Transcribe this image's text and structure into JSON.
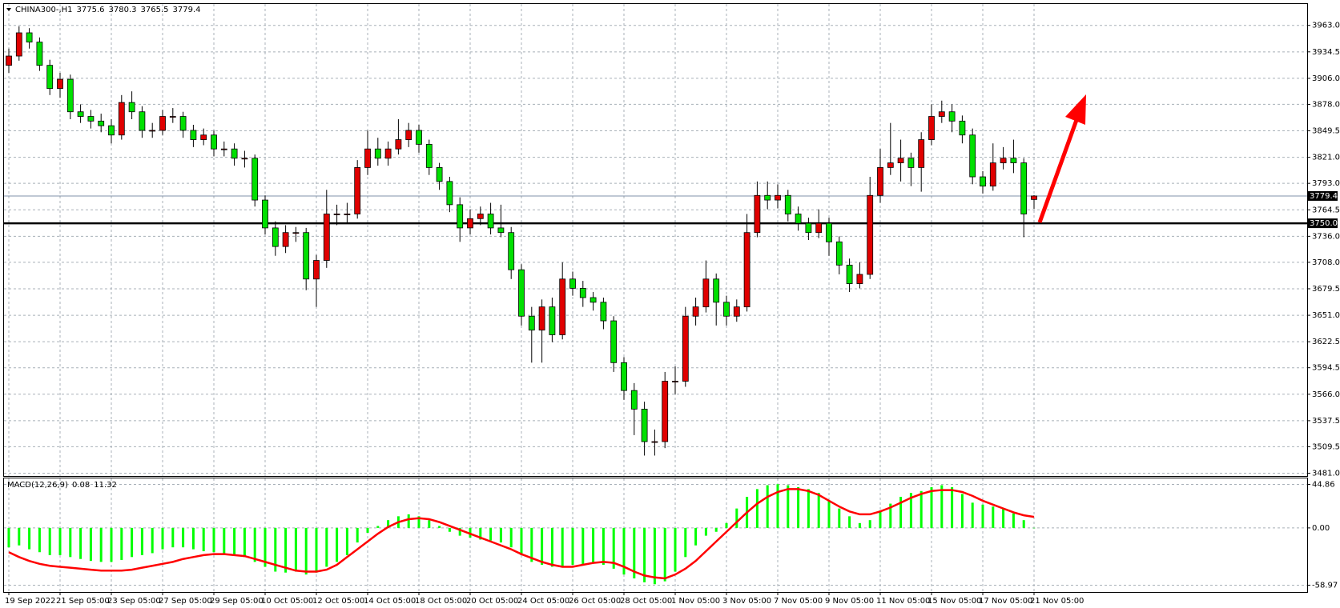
{
  "chart_data": {
    "type": "candlestick",
    "title": "CHINA300-,H1",
    "categories": [
      "19 Sep 2022",
      null,
      null,
      null,
      null,
      "21 Sep 05:00",
      null,
      null,
      null,
      null,
      "23 Sep 05:00",
      null,
      null,
      null,
      null,
      "27 Sep 05:00",
      null,
      null,
      null,
      null,
      "29 Sep 05:00",
      null,
      null,
      null,
      null,
      "10 Oct 05:00",
      null,
      null,
      null,
      null,
      "12 Oct 05:00",
      null,
      null,
      null,
      null,
      "14 Oct 05:00",
      null,
      null,
      null,
      null,
      "18 Oct 05:00",
      null,
      null,
      null,
      null,
      "20 Oct 05:00",
      null,
      null,
      null,
      null,
      "24 Oct 05:00",
      null,
      null,
      null,
      null,
      "26 Oct 05:00",
      null,
      null,
      null,
      null,
      "28 Oct 05:00",
      null,
      null,
      null,
      null,
      "1 Nov 05:00",
      null,
      null,
      null,
      null,
      "3 Nov 05:00",
      null,
      null,
      null,
      null,
      "7 Nov 05:00",
      null,
      null,
      null,
      null,
      "9 Nov 05:00",
      null,
      null,
      null,
      null,
      "11 Nov 05:00",
      null,
      null,
      null,
      null,
      "15 Nov 05:00",
      null,
      null,
      null,
      null,
      "17 Nov 05:00",
      null,
      null,
      null,
      null,
      "21 Nov 05:00"
    ],
    "candles": [
      [
        3920,
        3938,
        3912,
        3930
      ],
      [
        3930,
        3962,
        3925,
        3955
      ],
      [
        3955,
        3960,
        3938,
        3945
      ],
      [
        3945,
        3950,
        3914,
        3920
      ],
      [
        3920,
        3926,
        3888,
        3895
      ],
      [
        3895,
        3912,
        3885,
        3905
      ],
      [
        3905,
        3910,
        3862,
        3870
      ],
      [
        3870,
        3878,
        3858,
        3865
      ],
      [
        3865,
        3872,
        3852,
        3860
      ],
      [
        3860,
        3868,
        3848,
        3855
      ],
      [
        3855,
        3862,
        3836,
        3845
      ],
      [
        3845,
        3888,
        3840,
        3880
      ],
      [
        3880,
        3892,
        3862,
        3870
      ],
      [
        3870,
        3876,
        3842,
        3850
      ],
      [
        3850,
        3858,
        3842,
        3850
      ],
      [
        3850,
        3872,
        3845,
        3865
      ],
      [
        3865,
        3874,
        3858,
        3865
      ],
      [
        3865,
        3870,
        3842,
        3850
      ],
      [
        3850,
        3856,
        3832,
        3840
      ],
      [
        3840,
        3852,
        3834,
        3845
      ],
      [
        3845,
        3850,
        3822,
        3830
      ],
      [
        3830,
        3838,
        3822,
        3830
      ],
      [
        3830,
        3836,
        3812,
        3820
      ],
      [
        3820,
        3828,
        3810,
        3820
      ],
      [
        3820,
        3824,
        3768,
        3775
      ],
      [
        3775,
        3780,
        3738,
        3745
      ],
      [
        3745,
        3752,
        3715,
        3725
      ],
      [
        3725,
        3748,
        3718,
        3740
      ],
      [
        3740,
        3746,
        3730,
        3740
      ],
      [
        3740,
        3745,
        3678,
        3690
      ],
      [
        3690,
        3716,
        3660,
        3710
      ],
      [
        3710,
        3786,
        3702,
        3760
      ],
      [
        3760,
        3770,
        3748,
        3760
      ],
      [
        3760,
        3772,
        3750,
        3760
      ],
      [
        3760,
        3818,
        3755,
        3810
      ],
      [
        3810,
        3850,
        3802,
        3830
      ],
      [
        3830,
        3842,
        3812,
        3820
      ],
      [
        3820,
        3838,
        3812,
        3830
      ],
      [
        3830,
        3862,
        3824,
        3840
      ],
      [
        3840,
        3858,
        3832,
        3850
      ],
      [
        3850,
        3856,
        3826,
        3835
      ],
      [
        3835,
        3840,
        3802,
        3810
      ],
      [
        3810,
        3815,
        3786,
        3795
      ],
      [
        3795,
        3800,
        3762,
        3770
      ],
      [
        3770,
        3778,
        3730,
        3745
      ],
      [
        3745,
        3765,
        3738,
        3755
      ],
      [
        3755,
        3768,
        3748,
        3760
      ],
      [
        3760,
        3772,
        3738,
        3745
      ],
      [
        3745,
        3770,
        3735,
        3740
      ],
      [
        3740,
        3746,
        3690,
        3700
      ],
      [
        3700,
        3706,
        3640,
        3650
      ],
      [
        3650,
        3660,
        3600,
        3635
      ],
      [
        3635,
        3668,
        3600,
        3660
      ],
      [
        3660,
        3670,
        3622,
        3630
      ],
      [
        3630,
        3708,
        3625,
        3690
      ],
      [
        3690,
        3698,
        3672,
        3680
      ],
      [
        3680,
        3688,
        3660,
        3670
      ],
      [
        3670,
        3676,
        3656,
        3665
      ],
      [
        3665,
        3670,
        3636,
        3645
      ],
      [
        3645,
        3650,
        3590,
        3600
      ],
      [
        3600,
        3606,
        3560,
        3570
      ],
      [
        3570,
        3578,
        3522,
        3550
      ],
      [
        3550,
        3558,
        3500,
        3515
      ],
      [
        3515,
        3528,
        3500,
        3515
      ],
      [
        3515,
        3590,
        3508,
        3580
      ],
      [
        3580,
        3596,
        3566,
        3580
      ],
      [
        3580,
        3660,
        3574,
        3650
      ],
      [
        3650,
        3670,
        3640,
        3660
      ],
      [
        3660,
        3710,
        3654,
        3690
      ],
      [
        3690,
        3696,
        3640,
        3665
      ],
      [
        3665,
        3672,
        3640,
        3650
      ],
      [
        3650,
        3668,
        3644,
        3660
      ],
      [
        3660,
        3760,
        3655,
        3740
      ],
      [
        3740,
        3795,
        3735,
        3780
      ],
      [
        3780,
        3795,
        3765,
        3775
      ],
      [
        3775,
        3792,
        3766,
        3780
      ],
      [
        3780,
        3786,
        3752,
        3760
      ],
      [
        3760,
        3768,
        3742,
        3750
      ],
      [
        3750,
        3756,
        3732,
        3740
      ],
      [
        3740,
        3765,
        3734,
        3750
      ],
      [
        3750,
        3756,
        3715,
        3730
      ],
      [
        3730,
        3736,
        3695,
        3705
      ],
      [
        3705,
        3712,
        3676,
        3685
      ],
      [
        3685,
        3708,
        3680,
        3695
      ],
      [
        3695,
        3800,
        3690,
        3780
      ],
      [
        3780,
        3830,
        3772,
        3810
      ],
      [
        3810,
        3858,
        3802,
        3815
      ],
      [
        3815,
        3840,
        3795,
        3820
      ],
      [
        3820,
        3826,
        3790,
        3810
      ],
      [
        3810,
        3848,
        3784,
        3840
      ],
      [
        3840,
        3878,
        3834,
        3865
      ],
      [
        3865,
        3882,
        3858,
        3870
      ],
      [
        3870,
        3878,
        3848,
        3860
      ],
      [
        3860,
        3866,
        3836,
        3845
      ],
      [
        3845,
        3852,
        3792,
        3800
      ],
      [
        3800,
        3806,
        3782,
        3790
      ],
      [
        3790,
        3836,
        3785,
        3815
      ],
      [
        3815,
        3832,
        3808,
        3820
      ],
      [
        3820,
        3840,
        3804,
        3815
      ],
      [
        3815,
        3820,
        3735,
        3760
      ],
      [
        3775.6,
        3780.3,
        3765.5,
        3779.4
      ]
    ],
    "up_color": "#e00000",
    "down_color": "#00e000",
    "ylim": [
      3478,
      3986
    ],
    "yticks": [
      {
        "value": 3963,
        "label": "3963.0"
      },
      3934.5,
      {
        "value": 3906,
        "label": "3906.0"
      },
      {
        "value": 3878,
        "label": "3878.0"
      },
      3849.5,
      {
        "value": 3821,
        "label": "3821.0"
      },
      {
        "value": 3793,
        "label": "3793.0"
      },
      3764.5,
      {
        "value": 3736,
        "label": "3736.0"
      },
      {
        "value": 3708,
        "label": "3708.0"
      },
      3679.5,
      {
        "value": 3651,
        "label": "3651.0"
      },
      3622.5,
      3594.5,
      {
        "value": 3566,
        "label": "3566.0"
      },
      3537.5,
      3509.5,
      {
        "value": 3481,
        "label": "3481.0"
      }
    ],
    "grid": true,
    "bid_line": 3779.4,
    "level_line": {
      "value": 3750,
      "label": "3750.0"
    },
    "indicator": {
      "type": "macd",
      "title": "MACD(12,26,9)",
      "histogram": [
        -20,
        -18,
        -22,
        -25,
        -28,
        -28,
        -30,
        -32,
        -34,
        -35,
        -35,
        -33,
        -30,
        -28,
        -26,
        -22,
        -20,
        -20,
        -22,
        -24,
        -25,
        -27,
        -28,
        -30,
        -35,
        -40,
        -45,
        -46,
        -45,
        -48,
        -46,
        -40,
        -35,
        -28,
        -15,
        -5,
        2,
        8,
        12,
        14,
        12,
        8,
        2,
        -4,
        -8,
        -10,
        -12,
        -13,
        -15,
        -20,
        -28,
        -35,
        -38,
        -40,
        -40,
        -38,
        -38,
        -36,
        -38,
        -42,
        -48,
        -52,
        -56,
        -58,
        -55,
        -45,
        -30,
        -18,
        -8,
        -4,
        5,
        20,
        32,
        40,
        44,
        45,
        44,
        42,
        40,
        36,
        28,
        20,
        12,
        5,
        8,
        18,
        25,
        32,
        36,
        38,
        42,
        44,
        42,
        35,
        26,
        24,
        22,
        20,
        15,
        8,
        0.08
      ],
      "signal": [
        -25,
        -30,
        -34,
        -37,
        -39,
        -40,
        -41,
        -42,
        -43,
        -44,
        -44,
        -44,
        -43,
        -41,
        -39,
        -37,
        -35,
        -32,
        -30,
        -28,
        -27,
        -27,
        -28,
        -29,
        -32,
        -35,
        -38,
        -41,
        -44,
        -45,
        -45,
        -43,
        -38,
        -30,
        -22,
        -14,
        -6,
        1,
        6,
        9,
        10,
        9,
        6,
        2,
        -2,
        -6,
        -10,
        -14,
        -18,
        -22,
        -27,
        -31,
        -35,
        -38,
        -40,
        -40,
        -38,
        -36,
        -35,
        -36,
        -40,
        -45,
        -49,
        -51,
        -52,
        -48,
        -42,
        -34,
        -24,
        -14,
        -4,
        6,
        16,
        25,
        32,
        37,
        40,
        40,
        38,
        34,
        28,
        22,
        17,
        14,
        14,
        17,
        21,
        26,
        31,
        35,
        38,
        39,
        39,
        37,
        33,
        28,
        24,
        20,
        16,
        13,
        11.32
      ],
      "hist_color": "#00ff00",
      "signal_color": "#ff0000",
      "ylim": [
        -66,
        51
      ],
      "yticks": [
        44.86,
        {
          "value": 0,
          "label": "0.00"
        },
        -58.97
      ]
    }
  }
}
